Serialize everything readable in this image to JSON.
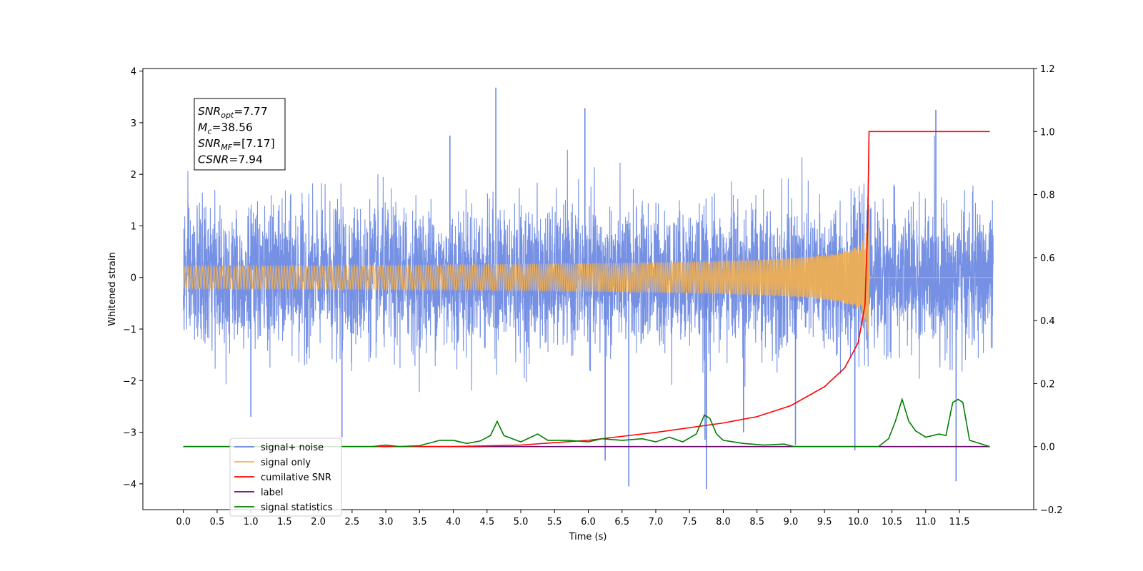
{
  "chart_data": {
    "type": "line",
    "xlabel": "Time (s)",
    "ylabel": "Whitened strain",
    "xlim": [
      -0.6,
      12.6
    ],
    "ylim": [
      -4.5,
      4.05
    ],
    "y2lim": [
      -0.2,
      1.2
    ],
    "xticks": [
      "0.0",
      "0.5",
      "1.0",
      "1.5",
      "2.0",
      "2.5",
      "3.0",
      "3.5",
      "4.0",
      "4.5",
      "5.0",
      "5.5",
      "6.0",
      "6.5",
      "7.0",
      "7.5",
      "8.0",
      "8.5",
      "9.0",
      "9.5",
      "10.0",
      "10.5",
      "11.0",
      "11.5"
    ],
    "yticks": [
      "4",
      "3",
      "2",
      "1",
      "0",
      "−1",
      "−2",
      "−3",
      "−4"
    ],
    "y2ticks": [
      "1.2",
      "1.0",
      "0.8",
      "0.6",
      "0.4",
      "0.2",
      "0.0",
      "−0.2"
    ],
    "grid": false,
    "legend_position": "bottom-left",
    "annotation": {
      "lines": [
        {
          "sym": "SNR",
          "sub": "opt",
          "value": "=7.77"
        },
        {
          "sym": "M",
          "sub": "c",
          "value": "=38.56"
        },
        {
          "sym": "SNR",
          "sub": "MF",
          "value": "=[7.17]"
        },
        {
          "sym": "CSNR",
          "sub": "",
          "value": "=7.94"
        }
      ]
    },
    "series": [
      {
        "name": "signal+ noise",
        "color": "#6a88e2",
        "axis": "left",
        "description_noise_std": 0.65,
        "x_range": [
          0.0,
          12.0
        ],
        "spikes": [
          [
            2.35,
            -3.1
          ],
          [
            4.63,
            3.68
          ],
          [
            5.95,
            3.28
          ],
          [
            6.6,
            -4.05
          ],
          [
            7.75,
            -4.1
          ],
          [
            11.15,
            3.25
          ],
          [
            11.45,
            -3.95
          ],
          [
            6.25,
            -3.55
          ],
          [
            1.0,
            -2.7
          ],
          [
            9.07,
            -3.25
          ],
          [
            8.3,
            -3.0
          ],
          [
            7.73,
            -3.15
          ],
          [
            3.95,
            2.75
          ],
          [
            9.95,
            -3.35
          ]
        ]
      },
      {
        "name": "signal only",
        "color": "#f5b04c",
        "axis": "left",
        "chirp_merger_time": 10.15,
        "peak_amplitude": 1.55
      },
      {
        "name": "cumilative SNR",
        "color": "#ff0000",
        "axis": "right",
        "x": [
          2.8,
          4.0,
          5.0,
          6.0,
          7.0,
          8.0,
          8.5,
          9.0,
          9.5,
          9.8,
          10.0,
          10.1,
          10.14,
          10.16,
          11.95
        ],
        "y": [
          0.0,
          0.0,
          0.005,
          0.02,
          0.045,
          0.075,
          0.095,
          0.13,
          0.19,
          0.25,
          0.33,
          0.45,
          0.7,
          1.0,
          1.0
        ]
      },
      {
        "name": "label",
        "color": "#6a0a6a",
        "axis": "right",
        "x": [
          0.0,
          11.95
        ],
        "y": [
          0.0,
          0.0
        ]
      },
      {
        "name": "signal statistics",
        "color": "#008000",
        "axis": "right",
        "x": [
          0.0,
          2.8,
          3.0,
          3.2,
          3.5,
          3.8,
          4.0,
          4.2,
          4.4,
          4.55,
          4.65,
          4.75,
          5.0,
          5.25,
          5.4,
          5.7,
          6.0,
          6.2,
          6.5,
          6.8,
          7.0,
          7.2,
          7.4,
          7.6,
          7.72,
          7.8,
          7.9,
          8.0,
          8.3,
          8.6,
          8.9,
          9.05,
          10.3,
          10.45,
          10.55,
          10.65,
          10.75,
          10.85,
          11.0,
          11.2,
          11.3,
          11.4,
          11.48,
          11.55,
          11.65,
          11.95
        ],
        "y": [
          0.0,
          0.0,
          0.005,
          0.0,
          0.003,
          0.02,
          0.02,
          0.01,
          0.018,
          0.035,
          0.08,
          0.035,
          0.015,
          0.04,
          0.02,
          0.02,
          0.015,
          0.025,
          0.02,
          0.025,
          0.015,
          0.03,
          0.015,
          0.04,
          0.1,
          0.09,
          0.04,
          0.02,
          0.01,
          0.005,
          0.008,
          0.0,
          0.0,
          0.025,
          0.08,
          0.15,
          0.08,
          0.05,
          0.03,
          0.04,
          0.035,
          0.14,
          0.15,
          0.14,
          0.02,
          0.0
        ]
      }
    ],
    "legend": [
      {
        "label": "signal+ noise",
        "color": "#6a88e2"
      },
      {
        "label": "signal only",
        "color": "#f5b04c"
      },
      {
        "label": "cumilative SNR",
        "color": "#ff0000"
      },
      {
        "label": "label",
        "color": "#6a0a6a"
      },
      {
        "label": "signal statistics",
        "color": "#008000"
      }
    ]
  }
}
